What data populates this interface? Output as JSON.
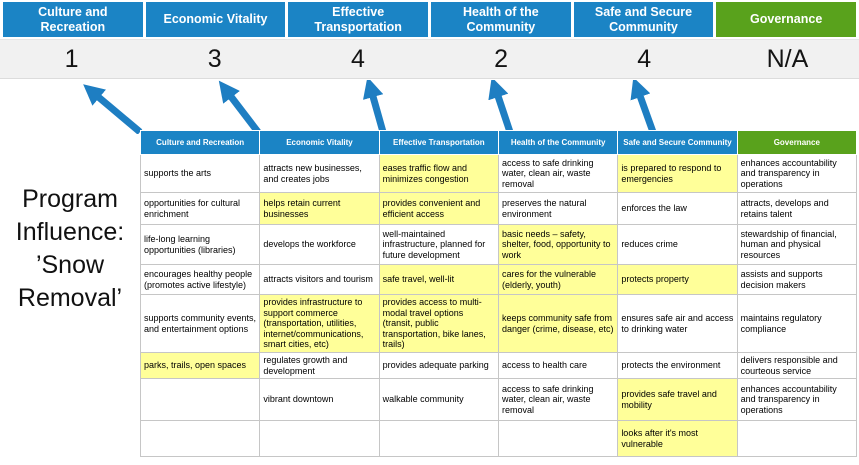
{
  "title": "Program Influence: ’Snow Removal’",
  "colors": {
    "blue": "#1b84c5",
    "green": "#59a21c",
    "highlight": "#ffff99",
    "arrow": "#1e7ec2",
    "score_band": "#f1f1f1"
  },
  "scoreboard": {
    "columns": [
      {
        "label": "Culture and Recreation",
        "score": "1",
        "color": "#1b84c5"
      },
      {
        "label": "Economic Vitality",
        "score": "3",
        "color": "#1b84c5"
      },
      {
        "label": "Effective Transportation",
        "score": "4",
        "color": "#1b84c5"
      },
      {
        "label": "Health of the Community",
        "score": "2",
        "color": "#1b84c5"
      },
      {
        "label": "Safe and Secure Community",
        "score": "4",
        "color": "#1b84c5"
      },
      {
        "label": "Governance",
        "score": "N/A",
        "color": "#59a21c"
      }
    ]
  },
  "matrix": {
    "rows": [
      [
        {
          "t": "supports the arts",
          "h": false
        },
        {
          "t": "attracts new businesses, and creates jobs",
          "h": false
        },
        {
          "t": "eases traffic flow and minimizes congestion",
          "h": true
        },
        {
          "t": "access to safe drinking water, clean air, waste removal",
          "h": false
        },
        {
          "t": "is prepared to respond to emergencies",
          "h": true
        },
        {
          "t": "enhances accountability and transparency in operations",
          "h": false
        }
      ],
      [
        {
          "t": "opportunities for cultural enrichment",
          "h": false
        },
        {
          "t": "helps retain current businesses",
          "h": true
        },
        {
          "t": "provides convenient and efficient access",
          "h": true
        },
        {
          "t": "preserves the natural environment",
          "h": false
        },
        {
          "t": "enforces the law",
          "h": false
        },
        {
          "t": "attracts, develops and retains talent",
          "h": false
        }
      ],
      [
        {
          "t": "life-long learning opportunities (libraries)",
          "h": false
        },
        {
          "t": "develops the workforce",
          "h": false
        },
        {
          "t": "well-maintained infrastructure, planned for future development",
          "h": false
        },
        {
          "t": "basic needs – safety, shelter, food, opportunity to work",
          "h": true
        },
        {
          "t": "reduces crime",
          "h": false
        },
        {
          "t": "stewardship of financial, human and physical resources",
          "h": false
        }
      ],
      [
        {
          "t": "encourages healthy people (promotes active lifestyle)",
          "h": false
        },
        {
          "t": "attracts visitors and tourism",
          "h": false
        },
        {
          "t": "safe travel, well-lit",
          "h": true
        },
        {
          "t": "cares for the vulnerable (elderly, youth)",
          "h": true
        },
        {
          "t": "protects property",
          "h": true
        },
        {
          "t": "assists and supports decision makers",
          "h": false
        }
      ],
      [
        {
          "t": "supports community events, and entertainment options",
          "h": false
        },
        {
          "t": "provides infrastructure to support commerce (transportation, utilities, internet/communications, smart cities, etc)",
          "h": true
        },
        {
          "t": "provides access to multi-modal travel options (transit, public transportation, bike lanes, trails)",
          "h": true
        },
        {
          "t": "keeps community safe from danger (crime, disease, etc)",
          "h": true
        },
        {
          "t": "ensures safe air and access to drinking water",
          "h": false
        },
        {
          "t": "maintains regulatory compliance",
          "h": false
        }
      ],
      [
        {
          "t": "parks, trails, open spaces",
          "h": true
        },
        {
          "t": "regulates growth and development",
          "h": false
        },
        {
          "t": "provides adequate parking",
          "h": false
        },
        {
          "t": "access to health care",
          "h": false
        },
        {
          "t": "protects the environment",
          "h": false
        },
        {
          "t": "delivers responsible and courteous service",
          "h": false
        }
      ],
      [
        {
          "t": "",
          "h": false
        },
        {
          "t": "vibrant downtown",
          "h": false
        },
        {
          "t": "walkable community",
          "h": false
        },
        {
          "t": "access to safe drinking water, clean air, waste removal",
          "h": false
        },
        {
          "t": "provides safe travel and mobility",
          "h": true
        },
        {
          "t": "enhances accountability and transparency in operations",
          "h": false
        }
      ],
      [
        {
          "t": "",
          "h": false
        },
        {
          "t": "",
          "h": false
        },
        {
          "t": "",
          "h": false
        },
        {
          "t": "",
          "h": false
        },
        {
          "t": "looks after it's most vulnerable",
          "h": true
        },
        {
          "t": "",
          "h": false
        }
      ]
    ]
  }
}
